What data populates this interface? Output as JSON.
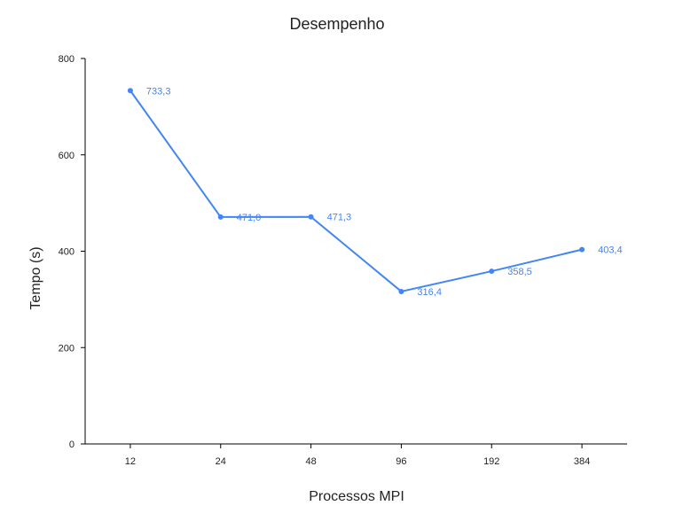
{
  "chart_data": {
    "type": "line",
    "title": "Desempenho",
    "xlabel": "Processos MPI",
    "ylabel": "Tempo (s)",
    "categories": [
      "12",
      "24",
      "48",
      "96",
      "192",
      "384"
    ],
    "series": [
      {
        "values": [
          733.3,
          471.0,
          471.3,
          316.4,
          358.5,
          403.4
        ],
        "data_labels": [
          "733,3",
          "471,0",
          "471,3",
          "316,4",
          "358,5",
          "403,4"
        ]
      }
    ],
    "ylim": [
      0,
      800
    ],
    "yticks": [
      0,
      200,
      400,
      600,
      800
    ],
    "grid": false,
    "legend": "none"
  },
  "colors": {
    "series": "#4285f4",
    "axis": "#000000",
    "text": "#222222"
  }
}
